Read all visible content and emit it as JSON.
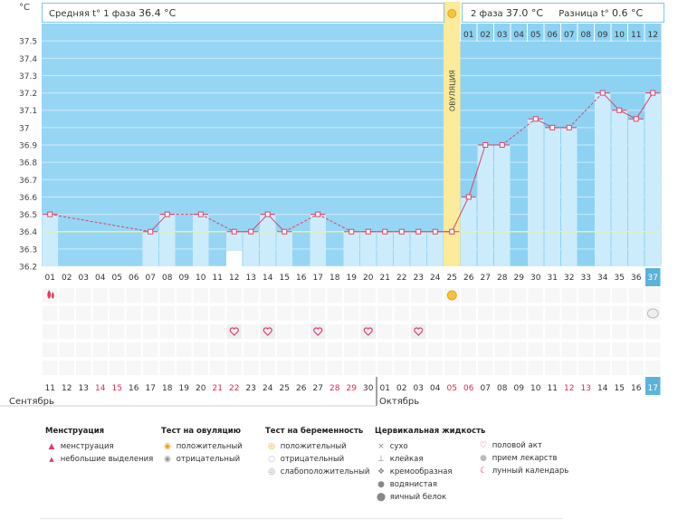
{
  "header": {
    "phase1_label": "Средняя t° 1 фаза",
    "phase1_value": "36.4 °C",
    "phase2_label": "2 фаза",
    "phase2_value": "37.0 °C",
    "diff_label": "Разница t°",
    "diff_value": "0.6 °C",
    "ovulation_label": "ОВУЛЯЦИЯ"
  },
  "chart_data": {
    "type": "line",
    "ylabel": "°C",
    "ylim": [
      36.2,
      37.6
    ],
    "yticks": [
      "36.2",
      "36.3",
      "36.4",
      "36.5",
      "36.6",
      "36.7",
      "36.8",
      "36.9",
      "37",
      "37.1",
      "37.2",
      "37.3",
      "37.4",
      "37.5"
    ],
    "cycle_days": [
      "01",
      "02",
      "03",
      "04",
      "05",
      "06",
      "07",
      "08",
      "09",
      "10",
      "11",
      "12",
      "13",
      "14",
      "15",
      "16",
      "17",
      "18",
      "19",
      "20",
      "21",
      "22",
      "23",
      "24",
      "25",
      "26",
      "27",
      "28",
      "29",
      "30",
      "31",
      "32",
      "33",
      "34",
      "35",
      "36",
      "37"
    ],
    "temperatures": [
      36.5,
      null,
      null,
      null,
      null,
      null,
      36.4,
      36.5,
      null,
      36.5,
      null,
      36.4,
      36.4,
      36.5,
      36.4,
      null,
      36.5,
      null,
      36.4,
      36.4,
      36.4,
      36.4,
      36.4,
      36.4,
      36.4,
      36.6,
      36.9,
      36.9,
      null,
      37.05,
      37.0,
      37.0,
      null,
      37.2,
      37.1,
      37.05,
      37.2
    ],
    "baseline": 36.4,
    "ovulation_day": "25",
    "phase2_days": [
      "01",
      "02",
      "03",
      "04",
      "05",
      "06",
      "07",
      "08",
      "09",
      "10",
      "11",
      "12"
    ],
    "dates": [
      "11",
      "12",
      "13",
      "14",
      "15",
      "16",
      "17",
      "18",
      "19",
      "20",
      "21",
      "22",
      "23",
      "24",
      "25",
      "26",
      "27",
      "28",
      "29",
      "30",
      "01",
      "02",
      "03",
      "04",
      "05",
      "06",
      "07",
      "08",
      "09",
      "10",
      "11",
      "12",
      "13",
      "14",
      "15",
      "16",
      "17"
    ],
    "red_dates": [
      3,
      4,
      10,
      11,
      17,
      18,
      24,
      25,
      31,
      32
    ],
    "months": [
      "Сентябрь",
      "Октябрь"
    ],
    "markers": [
      {
        "day": "01",
        "type": "menstruation"
      },
      {
        "day": "12",
        "type": "lunar"
      },
      {
        "day": "25",
        "type": "ovulation-positive"
      },
      {
        "day": "37",
        "type": "medication"
      },
      {
        "day": "12",
        "type": "intercourse"
      },
      {
        "day": "14",
        "type": "intercourse"
      },
      {
        "day": "17",
        "type": "intercourse"
      },
      {
        "day": "20",
        "type": "intercourse"
      },
      {
        "day": "23",
        "type": "intercourse"
      }
    ]
  },
  "legend": {
    "menstruation": {
      "title": "Менструация",
      "items": [
        "менструация",
        "небольшие выделения"
      ]
    },
    "ovulation_test": {
      "title": "Тест на овуляцию",
      "items": [
        "положительный",
        "отрицательный"
      ]
    },
    "pregnancy_test": {
      "title": "Тест на беременность",
      "items": [
        "положительный",
        "отрицательный",
        "слабоположительный"
      ]
    },
    "cervical": {
      "title": "Цервикальная жидкость",
      "items": [
        "сухо",
        "клейкая",
        "кремообразная",
        "водянистая",
        "яичный белок"
      ]
    },
    "other": {
      "items": [
        "половой акт",
        "прием лекарств",
        "лунный календарь"
      ]
    }
  },
  "colors": {
    "phase1_bg": "#97d5f4",
    "phase2_bg": "#8dd2f2",
    "bar": "#ccecfb",
    "ovulation": "#fbeb9a",
    "line": "#d9426b",
    "baseline": "#f1ee9a",
    "accent": "#5bb3d9",
    "red_date": "#e0294f"
  }
}
